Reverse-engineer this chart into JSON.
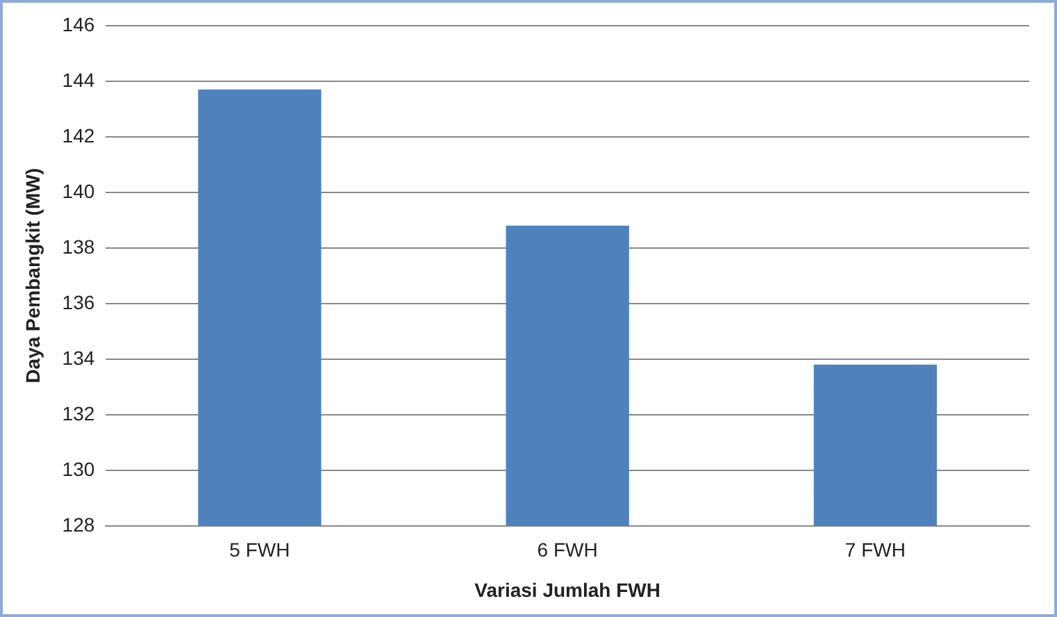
{
  "chart_data": {
    "type": "bar",
    "xlabel": "Variasi Jumlah FWH",
    "ylabel": "Daya Pembangkit (MW)",
    "categories": [
      "5 FWH",
      "6 FWH",
      "7 FWH"
    ],
    "values": [
      143.7,
      138.8,
      133.8
    ],
    "color": "#4f81bd",
    "ylim": [
      128,
      146
    ],
    "yticks": [
      128,
      130,
      132,
      134,
      136,
      138,
      140,
      142,
      144,
      146
    ],
    "grid": "y",
    "legend": false
  }
}
